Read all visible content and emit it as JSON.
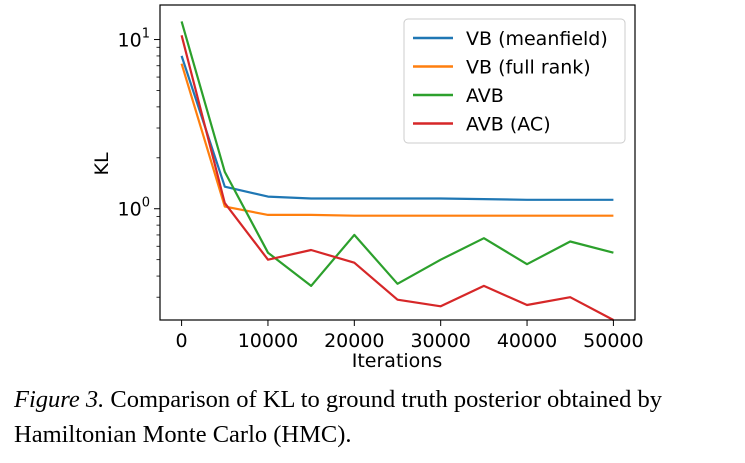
{
  "chart_data": {
    "type": "line",
    "title": "",
    "xlabel": "Iterations",
    "ylabel": "KL",
    "xlim": [
      -2500,
      52500
    ],
    "ylim": [
      0.22,
      16
    ],
    "yscale": "log",
    "x_ticks": [
      0,
      10000,
      20000,
      30000,
      40000,
      50000
    ],
    "x_tick_labels": [
      "0",
      "10000",
      "20000",
      "30000",
      "40000",
      "50000"
    ],
    "y_ticks": [
      1,
      10
    ],
    "y_tick_labels": [
      {
        "base": "10",
        "exp": "0"
      },
      {
        "base": "10",
        "exp": "1"
      }
    ],
    "grid": false,
    "legend_position": "top-right",
    "x": [
      0,
      5000,
      10000,
      15000,
      20000,
      25000,
      30000,
      35000,
      40000,
      45000,
      50000
    ],
    "series": [
      {
        "name": "VB (meanfield)",
        "color": "#1f77b4",
        "values": [
          8.0,
          1.35,
          1.18,
          1.15,
          1.15,
          1.15,
          1.15,
          1.14,
          1.13,
          1.13,
          1.13
        ]
      },
      {
        "name": "VB (full rank)",
        "color": "#ff7f0e",
        "values": [
          7.2,
          1.03,
          0.92,
          0.92,
          0.91,
          0.91,
          0.91,
          0.91,
          0.91,
          0.91,
          0.91
        ]
      },
      {
        "name": "AVB",
        "color": "#2ca02c",
        "values": [
          12.8,
          1.65,
          0.55,
          0.35,
          0.7,
          0.36,
          0.5,
          0.67,
          0.47,
          0.64,
          0.55
        ]
      },
      {
        "name": "AVB (AC)",
        "color": "#d62728",
        "values": [
          10.6,
          1.08,
          0.5,
          0.57,
          0.48,
          0.29,
          0.265,
          0.35,
          0.27,
          0.3,
          0.22
        ]
      }
    ]
  },
  "caption": {
    "figure_label": "Figure 3.",
    "text": " Comparison of KL to ground truth posterior obtained by Hamiltonian Monte Carlo (HMC)."
  }
}
